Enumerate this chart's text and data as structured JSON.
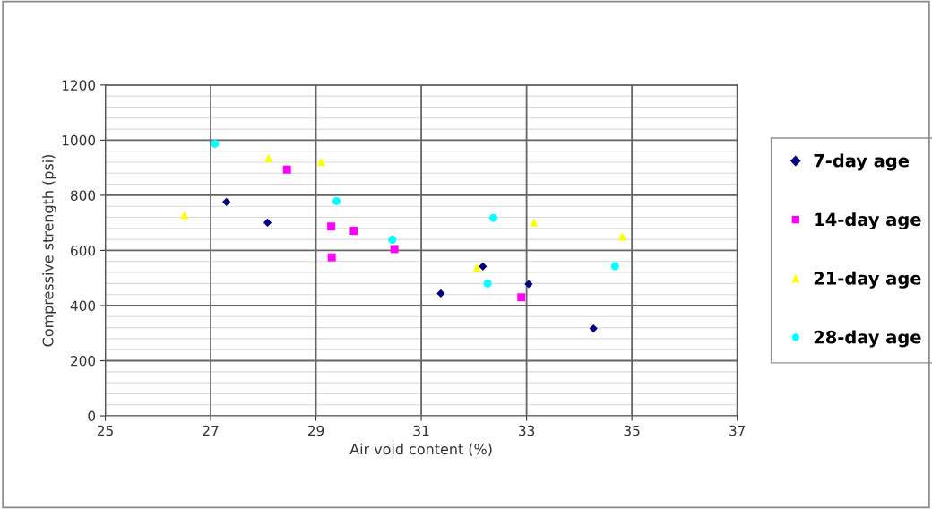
{
  "chart_data": {
    "type": "scatter",
    "xlabel": "Air void content (%)",
    "ylabel": "Compressive strength (psi)",
    "xlim": [
      25,
      37
    ],
    "xticks": [
      25,
      27,
      29,
      31,
      33,
      35,
      37
    ],
    "ylim": [
      0,
      1200
    ],
    "yticks": [
      0,
      200,
      400,
      600,
      800,
      1000,
      1200
    ],
    "grid": true,
    "legend": "right",
    "series": [
      {
        "name": "7-day age",
        "color": "#000080",
        "marker": "diamond",
        "x": [
          27.3,
          28.08,
          31.37,
          32.17,
          33.04,
          34.27
        ],
        "values": [
          776,
          701,
          444,
          542,
          478,
          317
        ]
      },
      {
        "name": "14-day age",
        "color": "#ff00ff",
        "marker": "square",
        "x": [
          28.45,
          29.29,
          29.72,
          29.3,
          30.49,
          32.9
        ],
        "values": [
          893,
          687,
          671,
          575,
          605,
          430
        ]
      },
      {
        "name": "21-day age",
        "color": "#ffff00",
        "marker": "triangle",
        "x": [
          26.5,
          28.1,
          29.1,
          32.06,
          33.14,
          34.82
        ],
        "values": [
          728,
          935,
          922,
          538,
          702,
          651
        ]
      },
      {
        "name": "28-day age",
        "color": "#00ffff",
        "marker": "circle",
        "x": [
          27.08,
          29.39,
          30.45,
          32.37,
          32.26,
          34.68
        ],
        "values": [
          987,
          779,
          639,
          718,
          480,
          543
        ]
      }
    ]
  }
}
